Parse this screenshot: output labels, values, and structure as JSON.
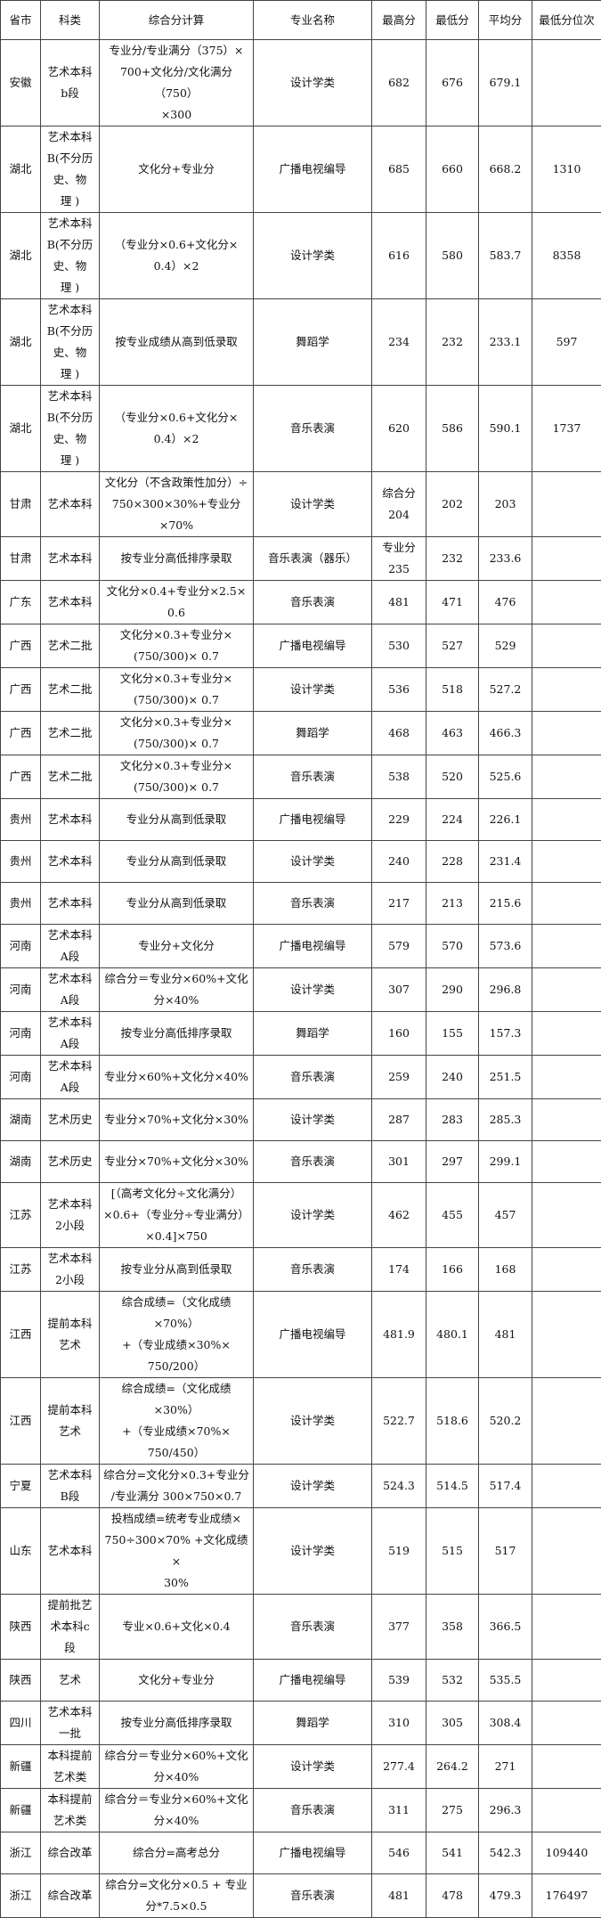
{
  "headers": [
    "省市",
    "科类",
    "综合分计算",
    "专业名称",
    "最高分",
    "最低分",
    "平均分",
    "最低分位次"
  ],
  "rows": [
    [
      "安徽",
      "艺术本科\nb段",
      "专业分/专业满分（375）×\n700+文化分/文化满分（750）\n×300",
      "设计学类",
      "682",
      "676",
      "679.1",
      ""
    ],
    [
      "湖北",
      "艺术本科\nB(不分历\n史、物\n理 )",
      "文化分+专业分",
      "广播电视编导",
      "685",
      "660",
      "668.2",
      "1310"
    ],
    [
      "湖北",
      "艺术本科\nB(不分历\n史、物\n理 )",
      "（专业分×0.6+文化分×\n0.4）×2",
      "设计学类",
      "616",
      "580",
      "583.7",
      "8358"
    ],
    [
      "湖北",
      "艺术本科\nB(不分历\n史、物\n理 )",
      "按专业成绩从高到低录取",
      "舞蹈学",
      "234",
      "232",
      "233.1",
      "597"
    ],
    [
      "湖北",
      "艺术本科\nB(不分历\n史、物\n理 )",
      "（专业分×0.6+文化分×\n0.4）×2",
      "音乐表演",
      "620",
      "586",
      "590.1",
      "1737"
    ],
    [
      "甘肃",
      "艺术本科",
      "文化分（不含政策性加分）÷\n750×300×30%+专业分×70%",
      "设计学类",
      "综合分\n204",
      "202",
      "203",
      ""
    ],
    [
      "甘肃",
      "艺术本科",
      "按专业分高低排序录取",
      "音乐表演（器乐）",
      "专业分\n235",
      "232",
      "233.6",
      ""
    ],
    [
      "广东",
      "艺术本科",
      "文化分×0.4+专业分×2.5×\n0.6",
      "音乐表演",
      "481",
      "471",
      "476",
      ""
    ],
    [
      "广西",
      "艺术二批",
      "文化分×0.3+专业分×\n(750/300)× 0.7",
      "广播电视编导",
      "530",
      "527",
      "529",
      ""
    ],
    [
      "广西",
      "艺术二批",
      "文化分×0.3+专业分×\n(750/300)× 0.7",
      "设计学类",
      "536",
      "518",
      "527.2",
      ""
    ],
    [
      "广西",
      "艺术二批",
      "文化分×0.3+专业分×\n(750/300)× 0.7",
      "舞蹈学",
      "468",
      "463",
      "466.3",
      ""
    ],
    [
      "广西",
      "艺术二批",
      "文化分×0.3+专业分×\n(750/300)× 0.7",
      "音乐表演",
      "538",
      "520",
      "525.6",
      ""
    ],
    [
      "贵州",
      "艺术本科",
      "专业分从高到低录取",
      "广播电视编导",
      "229",
      "224",
      "226.1",
      ""
    ],
    [
      "贵州",
      "艺术本科",
      "专业分从高到低录取",
      "设计学类",
      "240",
      "228",
      "231.4",
      ""
    ],
    [
      "贵州",
      "艺术本科",
      "专业分从高到低录取",
      "音乐表演",
      "217",
      "213",
      "215.6",
      ""
    ],
    [
      "河南",
      "艺术本科\nA段",
      "专业分+文化分",
      "广播电视编导",
      "579",
      "570",
      "573.6",
      ""
    ],
    [
      "河南",
      "艺术本科\nA段",
      "综合分＝专业分×60%+文化\n分×40%",
      "设计学类",
      "307",
      "290",
      "296.8",
      ""
    ],
    [
      "河南",
      "艺术本科\nA段",
      "按专业分高低排序录取",
      "舞蹈学",
      "160",
      "155",
      "157.3",
      ""
    ],
    [
      "河南",
      "艺术本科\nA段",
      "专业分×60%+文化分×40%",
      "音乐表演",
      "259",
      "240",
      "251.5",
      ""
    ],
    [
      "湖南",
      "艺术历史",
      "专业分×70%+文化分×30%",
      "设计学类",
      "287",
      "283",
      "285.3",
      ""
    ],
    [
      "湖南",
      "艺术历史",
      "专业分×70%+文化分×30%",
      "音乐表演",
      "301",
      "297",
      "299.1",
      ""
    ],
    [
      "江苏",
      "艺术本科\n2小段",
      "[（高考文化分÷文化满分）\n×0.6+（专业分÷专业满分）\n×0.4]×750",
      "设计学类",
      "462",
      "455",
      "457",
      ""
    ],
    [
      "江苏",
      "艺术本科\n2小段",
      "按专业分从高到低录取",
      "音乐表演",
      "174",
      "166",
      "168",
      ""
    ],
    [
      "江西",
      "提前本科\n艺术",
      "综合成绩=（文化成绩×70%）\n+（专业成绩×30%×\n750/200）",
      "广播电视编导",
      "481.9",
      "480.1",
      "481",
      ""
    ],
    [
      "江西",
      "提前本科\n艺术",
      "综合成绩=（文化成绩×30%）\n+（专业成绩×70%×\n750/450）",
      "设计学类",
      "522.7",
      "518.6",
      "520.2",
      ""
    ],
    [
      "宁夏",
      "艺术本科\nB段",
      "综合分=文化分×0.3+专业分\n/专业满分 300×750×0.7",
      "设计学类",
      "524.3",
      "514.5",
      "517.4",
      ""
    ],
    [
      "山东",
      "艺术本科",
      "投档成绩=统考专业成绩×\n750÷300×70% +文化成绩×\n30%",
      "设计学类",
      "519",
      "515",
      "517",
      ""
    ],
    [
      "陕西",
      "提前批艺\n术本科c\n段",
      "专业×0.6+文化×0.4",
      "音乐表演",
      "377",
      "358",
      "366.5",
      ""
    ],
    [
      "陕西",
      "艺术",
      "文化分+专业分",
      "广播电视编导",
      "539",
      "532",
      "535.5",
      ""
    ],
    [
      "四川",
      "艺术本科\n一批",
      "按专业分高低排序录取",
      "舞蹈学",
      "310",
      "305",
      "308.4",
      ""
    ],
    [
      "新疆",
      "本科提前\n艺术类",
      "综合分＝专业分×60%+文化\n分×40%",
      "设计学类",
      "277.4",
      "264.2",
      "271",
      ""
    ],
    [
      "新疆",
      "本科提前\n艺术类",
      "综合分＝专业分×60%+文化\n分×40%",
      "音乐表演",
      "311",
      "275",
      "296.3",
      ""
    ],
    [
      "浙江",
      "综合改革",
      "综合分=高考总分",
      "广播电视编导",
      "546",
      "541",
      "542.3",
      "109440"
    ],
    [
      "浙江",
      "综合改革",
      "综合分=文化分×0.5 + 专业\n分*7.5×0.5",
      "音乐表演",
      "481",
      "478",
      "479.3",
      "176497"
    ]
  ]
}
